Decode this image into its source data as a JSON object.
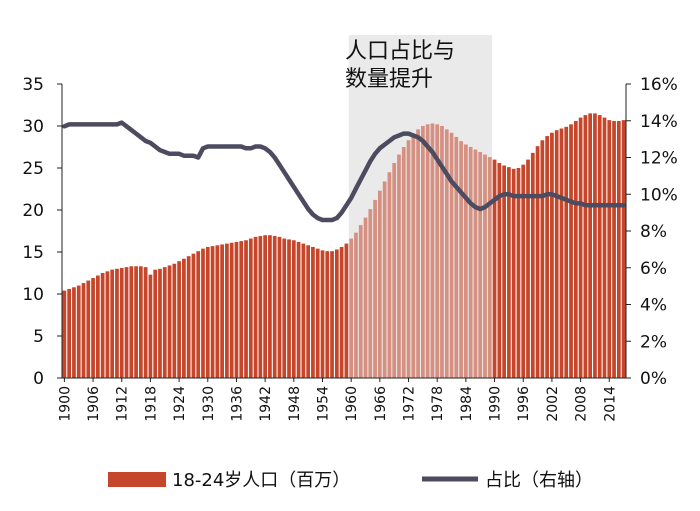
{
  "chart_data": {
    "type": "bar",
    "title": "",
    "xlabel": "",
    "ylabel": "",
    "ylim": [
      0,
      35
    ],
    "y2lim": [
      0,
      16
    ],
    "y_ticks": [
      "0",
      "5",
      "10",
      "15",
      "20",
      "25",
      "30",
      "35"
    ],
    "y2_ticks": [
      "0%",
      "2%",
      "4%",
      "6%",
      "8%",
      "10%",
      "12%",
      "14%",
      "16%"
    ],
    "x_tick_labels": [
      "1900",
      "1906",
      "1912",
      "1918",
      "1924",
      "1930",
      "1936",
      "1942",
      "1948",
      "1954",
      "1960",
      "1966",
      "1972",
      "1978",
      "1984",
      "1990",
      "1996",
      "2002",
      "2008",
      "2014"
    ],
    "x": [
      1900,
      1901,
      1902,
      1903,
      1904,
      1905,
      1906,
      1907,
      1908,
      1909,
      1910,
      1911,
      1912,
      1913,
      1914,
      1915,
      1916,
      1917,
      1918,
      1919,
      1920,
      1921,
      1922,
      1923,
      1924,
      1925,
      1926,
      1927,
      1928,
      1929,
      1930,
      1931,
      1932,
      1933,
      1934,
      1935,
      1936,
      1937,
      1938,
      1939,
      1940,
      1941,
      1942,
      1943,
      1944,
      1945,
      1946,
      1947,
      1948,
      1949,
      1950,
      1951,
      1952,
      1953,
      1954,
      1955,
      1956,
      1957,
      1958,
      1959,
      1960,
      1961,
      1962,
      1963,
      1964,
      1965,
      1966,
      1967,
      1968,
      1969,
      1970,
      1971,
      1972,
      1973,
      1974,
      1975,
      1976,
      1977,
      1978,
      1979,
      1980,
      1981,
      1982,
      1983,
      1984,
      1985,
      1986,
      1987,
      1988,
      1989,
      1990,
      1991,
      1992,
      1993,
      1994,
      1995,
      1996,
      1997,
      1998,
      1999,
      2000,
      2001,
      2002,
      2003,
      2004,
      2005,
      2006,
      2007,
      2008,
      2009,
      2010,
      2011,
      2012,
      2013,
      2014,
      2015,
      2016,
      2017
    ],
    "series": [
      {
        "name": "18-24岁人口（百万）",
        "kind": "bar",
        "axis": "left",
        "color": "#c5462a",
        "values": [
          10.4,
          10.6,
          10.8,
          11.0,
          11.3,
          11.6,
          11.9,
          12.2,
          12.5,
          12.7,
          12.9,
          13.0,
          13.1,
          13.2,
          13.3,
          13.3,
          13.3,
          13.2,
          12.3,
          12.9,
          13.0,
          13.2,
          13.4,
          13.6,
          13.9,
          14.2,
          14.5,
          14.8,
          15.1,
          15.4,
          15.6,
          15.7,
          15.8,
          15.9,
          16.0,
          16.1,
          16.2,
          16.3,
          16.4,
          16.6,
          16.8,
          16.9,
          17.0,
          17.0,
          16.9,
          16.8,
          16.6,
          16.5,
          16.4,
          16.2,
          16.0,
          15.8,
          15.6,
          15.4,
          15.2,
          15.1,
          15.1,
          15.3,
          15.6,
          16.0,
          16.6,
          17.3,
          18.2,
          19.1,
          20.1,
          21.2,
          22.3,
          23.4,
          24.5,
          25.6,
          26.6,
          27.5,
          28.3,
          29.0,
          29.6,
          30.0,
          30.2,
          30.3,
          30.2,
          30.0,
          29.6,
          29.2,
          28.7,
          28.2,
          27.8,
          27.5,
          27.2,
          26.9,
          26.6,
          26.3,
          26.0,
          25.6,
          25.3,
          25.1,
          24.9,
          25.0,
          25.4,
          26.0,
          26.8,
          27.6,
          28.3,
          28.8,
          29.2,
          29.5,
          29.7,
          29.9,
          30.2,
          30.6,
          31.0,
          31.3,
          31.5,
          31.5,
          31.3,
          31.0,
          30.7,
          30.6,
          30.6,
          30.7
        ]
      },
      {
        "name": "占比（右轴）",
        "kind": "line",
        "axis": "right",
        "color": "#4d4b5f",
        "values": [
          13.7,
          13.8,
          13.8,
          13.8,
          13.8,
          13.8,
          13.8,
          13.8,
          13.8,
          13.8,
          13.8,
          13.8,
          13.9,
          13.7,
          13.5,
          13.3,
          13.1,
          12.9,
          12.8,
          12.6,
          12.4,
          12.3,
          12.2,
          12.2,
          12.2,
          12.1,
          12.1,
          12.1,
          12.0,
          12.5,
          12.6,
          12.6,
          12.6,
          12.6,
          12.6,
          12.6,
          12.6,
          12.6,
          12.5,
          12.5,
          12.6,
          12.6,
          12.5,
          12.3,
          12.0,
          11.6,
          11.2,
          10.8,
          10.4,
          10.0,
          9.6,
          9.2,
          8.9,
          8.7,
          8.6,
          8.6,
          8.6,
          8.7,
          9.0,
          9.4,
          9.8,
          10.3,
          10.8,
          11.3,
          11.8,
          12.2,
          12.5,
          12.7,
          12.9,
          13.1,
          13.2,
          13.3,
          13.3,
          13.2,
          13.1,
          12.9,
          12.6,
          12.3,
          11.9,
          11.5,
          11.1,
          10.7,
          10.4,
          10.1,
          9.8,
          9.5,
          9.3,
          9.2,
          9.3,
          9.5,
          9.7,
          9.9,
          10.0,
          10.0,
          9.9,
          9.9,
          9.9,
          9.9,
          9.9,
          9.9,
          9.9,
          10.0,
          10.0,
          9.9,
          9.8,
          9.7,
          9.6,
          9.5,
          9.5,
          9.4,
          9.4,
          9.4,
          9.4,
          9.4,
          9.4,
          9.4,
          9.4,
          9.4
        ]
      }
    ],
    "highlight": {
      "x_from": 1960,
      "x_to": 1989,
      "label_line1": "人口占比与",
      "label_line2": "数量提升"
    },
    "legend": {
      "placement": "bottom",
      "bar_label": "18-24岁人口（百万）",
      "line_label": "占比（右轴）"
    },
    "grid": false
  }
}
